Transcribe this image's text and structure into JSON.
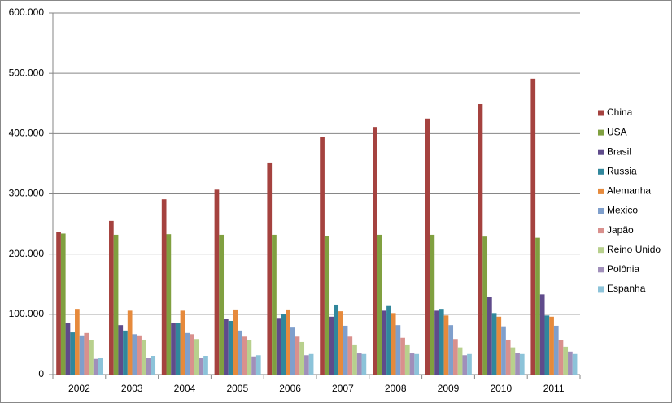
{
  "chart_data": {
    "type": "bar",
    "categories": [
      "2002",
      "2003",
      "2004",
      "2005",
      "2006",
      "2007",
      "2008",
      "2009",
      "2010",
      "2011"
    ],
    "series": [
      {
        "name": "China",
        "color": "#a5423f",
        "values": [
          236000,
          255000,
          291000,
          307000,
          352000,
          394000,
          411000,
          425000,
          449000,
          491000
        ]
      },
      {
        "name": "USA",
        "color": "#80a040",
        "values": [
          234000,
          232000,
          233000,
          232000,
          232000,
          230000,
          232000,
          232000,
          229000,
          227000
        ]
      },
      {
        "name": "Brasil",
        "color": "#5f4b8b",
        "values": [
          86000,
          82000,
          86000,
          92000,
          94000,
          96000,
          106000,
          106000,
          129000,
          133000
        ]
      },
      {
        "name": "Russia",
        "color": "#31879c",
        "values": [
          70000,
          73000,
          85000,
          89000,
          101000,
          116000,
          115000,
          109000,
          102000,
          98000
        ]
      },
      {
        "name": "Alemanha",
        "color": "#e68a3c",
        "values": [
          109000,
          106000,
          106000,
          108000,
          108000,
          105000,
          102000,
          98000,
          96000,
          96000
        ]
      },
      {
        "name": "Mexico",
        "color": "#7f9fcc",
        "values": [
          65000,
          67000,
          69000,
          73000,
          78000,
          81000,
          82000,
          82000,
          80000,
          81000
        ]
      },
      {
        "name": "Japão",
        "color": "#d9908d",
        "values": [
          69000,
          65000,
          67000,
          63000,
          63000,
          63000,
          61000,
          59000,
          58000,
          57000
        ]
      },
      {
        "name": "Reino Unido",
        "color": "#b8d08d",
        "values": [
          57000,
          58000,
          59000,
          57000,
          54000,
          50000,
          50000,
          45000,
          45000,
          46000
        ]
      },
      {
        "name": "Polônia",
        "color": "#a08fba",
        "values": [
          26000,
          27000,
          28000,
          30000,
          32000,
          35000,
          35000,
          32000,
          36000,
          38000
        ]
      },
      {
        "name": "Espanha",
        "color": "#8cc3d9",
        "values": [
          28000,
          31000,
          31000,
          32000,
          34000,
          34000,
          34000,
          34000,
          34000,
          34000
        ]
      }
    ],
    "ylim": [
      0,
      600000
    ],
    "yticks": [
      0,
      {
        "value": 100000,
        "label": "100.000"
      },
      {
        "value": 200000,
        "label": "200.000"
      },
      {
        "value": 300000,
        "label": "300.000"
      },
      {
        "value": 400000,
        "label": "400.000"
      },
      {
        "value": 500000,
        "label": "500.000"
      },
      {
        "value": 600000,
        "label": "600.000"
      }
    ],
    "grid": true,
    "legend": "right"
  }
}
